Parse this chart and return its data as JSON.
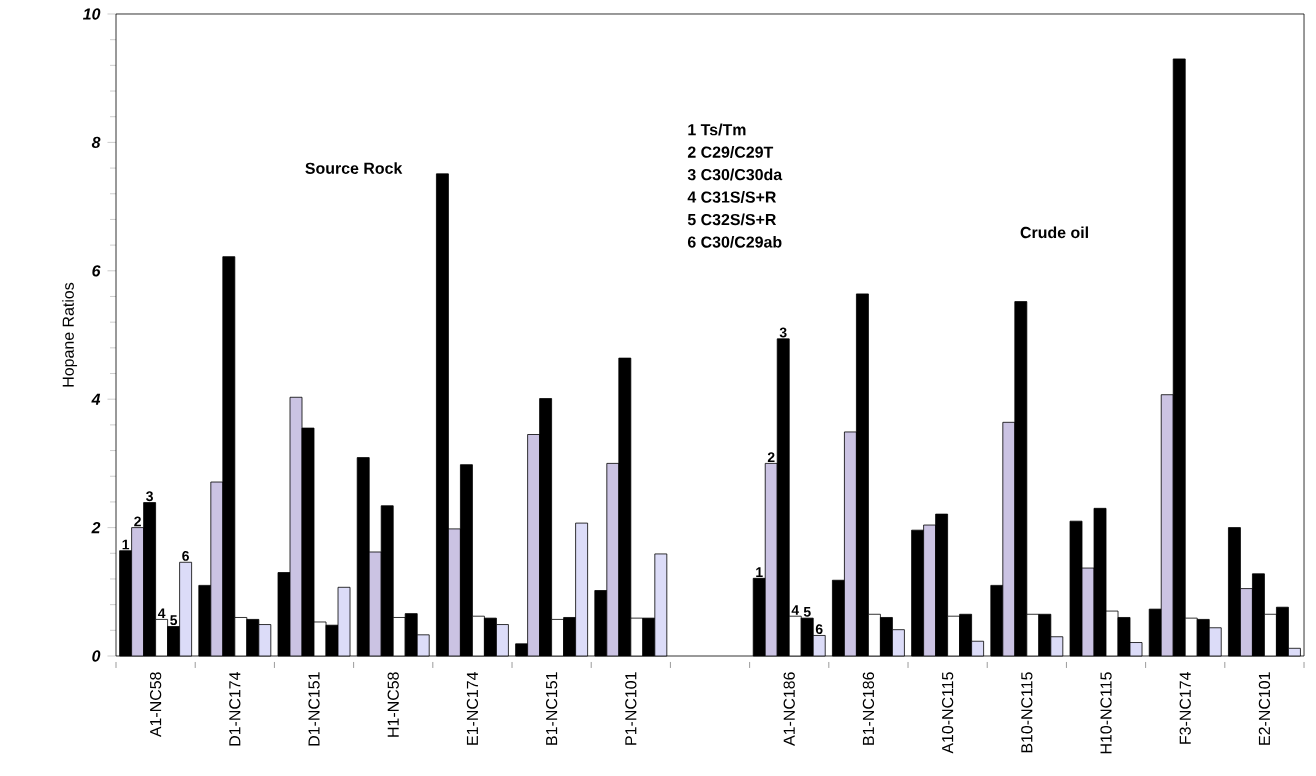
{
  "chart_data": {
    "type": "bar",
    "ylabel": "Hopane Ratios",
    "categories": [
      "A1-NC58",
      "D1-NC174",
      "D1-NC151",
      "H1-NC58",
      "E1-NC174",
      "B1-NC151",
      "P1-NC101",
      null,
      "A1-NC186",
      "B1-NC186",
      "A10-NC115",
      "B10-NC115",
      "H10-NC115",
      "F3-NC174",
      "E2-NC101"
    ],
    "series": [
      {
        "color": "#000000",
        "values": [
          1.64,
          1.1,
          1.3,
          3.09,
          7.51,
          0.19,
          1.02,
          null,
          1.21,
          1.18,
          1.96,
          1.1,
          2.1,
          0.73,
          2.0
        ]
      },
      {
        "color": "#cbc3e3",
        "values": [
          2.0,
          2.71,
          4.03,
          1.62,
          1.98,
          3.45,
          3.0,
          null,
          3.0,
          3.49,
          2.04,
          3.64,
          1.37,
          4.07,
          1.05
        ]
      },
      {
        "color": "#000000",
        "values": [
          2.39,
          6.22,
          3.55,
          2.34,
          2.98,
          4.01,
          4.64,
          null,
          4.94,
          5.64,
          2.21,
          5.52,
          2.3,
          9.3,
          1.28
        ]
      },
      {
        "color": "#ffffff",
        "values": [
          0.57,
          0.6,
          0.53,
          0.6,
          0.62,
          0.57,
          0.59,
          null,
          0.62,
          0.65,
          0.62,
          0.65,
          0.7,
          0.59,
          0.65
        ]
      },
      {
        "color": "#000000",
        "values": [
          0.46,
          0.57,
          0.48,
          0.66,
          0.59,
          0.6,
          0.59,
          null,
          0.59,
          0.6,
          0.65,
          0.65,
          0.6,
          0.57,
          0.76
        ]
      },
      {
        "color": "#dcdcf8",
        "values": [
          1.46,
          0.49,
          1.07,
          0.33,
          0.49,
          2.07,
          1.59,
          null,
          0.32,
          0.41,
          0.23,
          0.3,
          0.21,
          0.44,
          0.12
        ]
      }
    ],
    "ylim": [
      0,
      10
    ],
    "yticks": [
      0,
      2,
      4,
      6,
      8,
      10
    ],
    "grid": false,
    "annotations": [
      "Source Rock",
      "Crude oil",
      "1 Ts/Tm",
      "2 C29/C29T",
      "3 C30/C30da",
      "4 C31S/S+R",
      "5 C32S/S+R",
      "6 C30/C29ab",
      {
        "text": "1",
        "x": "A1-NC58",
        "y": 1.64
      },
      {
        "text": "2",
        "x": "A1-NC58",
        "y": 2.0
      },
      {
        "text": "3",
        "x": "A1-NC58",
        "y": 2.39
      },
      {
        "text": "4",
        "x": "A1-NC58",
        "y": 0.57
      },
      {
        "text": "5",
        "x": "A1-NC58",
        "y": 0.46
      },
      {
        "text": "6",
        "x": "A1-NC58",
        "y": 1.46
      },
      {
        "text": "1",
        "x": "A1-NC186",
        "y": 1.21
      },
      {
        "text": "2",
        "x": "A1-NC186",
        "y": 3.0
      },
      {
        "text": "3",
        "x": "A1-NC186",
        "y": 4.94
      },
      {
        "text": "4",
        "x": "A1-NC186",
        "y": 0.62
      },
      {
        "text": "5",
        "x": "A1-NC186",
        "y": 0.59
      },
      {
        "text": "6",
        "x": "A1-NC186",
        "y": 0.32
      }
    ]
  }
}
